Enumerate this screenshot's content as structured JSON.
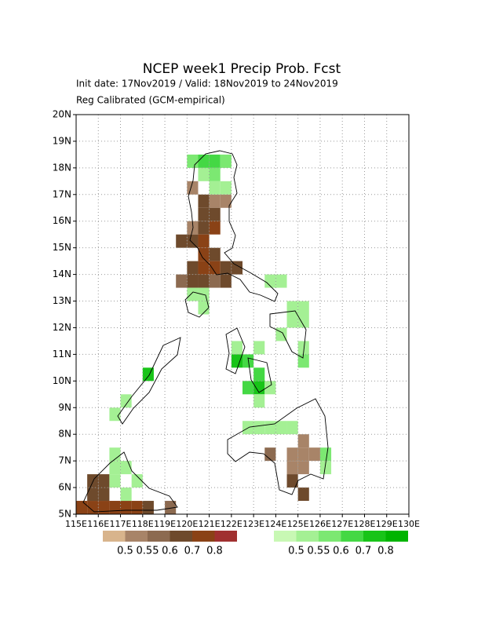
{
  "chart_data": {
    "type": "gridmap",
    "title": "NCEP week1 Precip Prob. Fcst",
    "subtitle": "Init date: 17Nov2019 / Valid: 18Nov2019 to 24Nov2019",
    "note": "Reg Calibrated (GCM-empirical)",
    "xlim": [
      115,
      130
    ],
    "ylim": [
      5,
      20
    ],
    "xticks": [
      {
        "value": 115,
        "label": "115E"
      },
      {
        "value": 116,
        "label": "116E"
      },
      {
        "value": 117,
        "label": "117E"
      },
      {
        "value": 118,
        "label": "118E"
      },
      {
        "value": 119,
        "label": "119E"
      },
      {
        "value": 120,
        "label": "120E"
      },
      {
        "value": 121,
        "label": "121E"
      },
      {
        "value": 122,
        "label": "122E"
      },
      {
        "value": 123,
        "label": "123E"
      },
      {
        "value": 124,
        "label": "124E"
      },
      {
        "value": 125,
        "label": "125E"
      },
      {
        "value": 126,
        "label": "126E"
      },
      {
        "value": 127,
        "label": "127E"
      },
      {
        "value": 128,
        "label": "128E"
      },
      {
        "value": 129,
        "label": "129E"
      },
      {
        "value": 130,
        "label": "130E"
      }
    ],
    "yticks": [
      {
        "value": 5,
        "label": "5N"
      },
      {
        "value": 6,
        "label": "6N"
      },
      {
        "value": 7,
        "label": "7N"
      },
      {
        "value": 8,
        "label": "8N"
      },
      {
        "value": 9,
        "label": "9N"
      },
      {
        "value": 10,
        "label": "10N"
      },
      {
        "value": 11,
        "label": "11N"
      },
      {
        "value": 12,
        "label": "12N"
      },
      {
        "value": 13,
        "label": "13N"
      },
      {
        "value": 14,
        "label": "14N"
      },
      {
        "value": 15,
        "label": "15N"
      },
      {
        "value": 16,
        "label": "16N"
      },
      {
        "value": 17,
        "label": "17N"
      },
      {
        "value": 18,
        "label": "18N"
      },
      {
        "value": 19,
        "label": "19N"
      },
      {
        "value": 20,
        "label": "20N"
      }
    ],
    "grid": true,
    "cell_size": 0.5,
    "series": [
      {
        "levels": [
          0.5,
          0.55,
          0.6,
          0.7,
          0.8
        ],
        "colors": [
          "#d8b48c",
          "#a88468",
          "#8c6a50",
          "#6e4a2c",
          "#8a4216",
          "#a03030"
        ],
        "lon": [
          120.0,
          121.0,
          121.5,
          120.5,
          120.5,
          121.0,
          120.0,
          120.5,
          121.0,
          119.5,
          120.0,
          120.5,
          120.5,
          121.0,
          120.0,
          120.5,
          121.0,
          121.5,
          122.0,
          119.5,
          120.0,
          120.5,
          121.0,
          121.5,
          125.0,
          123.5,
          124.5,
          125.0,
          125.5,
          124.5,
          125.0,
          124.5,
          125.0,
          115.0,
          115.5,
          116.0,
          116.5,
          117.0,
          117.5,
          115.5,
          116.0,
          115.5,
          116.0,
          118.0,
          119.0
        ],
        "lat": [
          17.0,
          16.5,
          16.5,
          16.5,
          16.0,
          16.0,
          15.5,
          15.5,
          15.5,
          15.0,
          15.0,
          15.0,
          14.5,
          14.5,
          14.0,
          14.0,
          14.0,
          14.0,
          14.0,
          13.5,
          13.5,
          13.5,
          13.5,
          13.5,
          7.5,
          7.0,
          7.0,
          7.0,
          7.0,
          6.5,
          6.5,
          6.0,
          5.5,
          5.0,
          5.0,
          5.0,
          5.0,
          5.0,
          5.0,
          5.5,
          5.5,
          6.0,
          6.0,
          5.0,
          5.0
        ],
        "values": [
          0.5,
          0.5,
          0.5,
          0.6,
          0.6,
          0.6,
          0.5,
          0.6,
          0.7,
          0.6,
          0.6,
          0.7,
          0.7,
          0.6,
          0.6,
          0.7,
          0.7,
          0.6,
          0.6,
          0.55,
          0.6,
          0.6,
          0.55,
          0.6,
          0.5,
          0.55,
          0.5,
          0.5,
          0.5,
          0.5,
          0.5,
          0.6,
          0.6,
          0.7,
          0.7,
          0.7,
          0.7,
          0.7,
          0.7,
          0.6,
          0.6,
          0.6,
          0.6,
          0.6,
          0.55
        ]
      },
      {
        "levels": [
          0.5,
          0.55,
          0.6,
          0.7,
          0.8
        ],
        "colors": [
          "#c8f8b4",
          "#a4f094",
          "#7ce872",
          "#44d844",
          "#18c418",
          "#00b400"
        ],
        "lon": [
          120.0,
          120.5,
          121.0,
          121.5,
          120.5,
          121.0,
          121.0,
          121.5,
          123.5,
          124.0,
          120.0,
          120.5,
          120.5,
          124.5,
          125.0,
          124.5,
          125.0,
          124.0,
          122.0,
          123.0,
          125.0,
          122.0,
          122.5,
          125.0,
          123.0,
          122.5,
          123.0,
          123.5,
          123.0,
          118.0,
          117.0,
          116.5,
          122.5,
          123.0,
          123.5,
          124.0,
          124.5,
          126.0,
          126.0,
          116.5,
          117.0,
          117.5,
          116.5,
          117.0,
          116.5
        ],
        "lat": [
          18.0,
          18.0,
          18.0,
          18.0,
          17.5,
          17.5,
          17.0,
          17.0,
          13.5,
          13.5,
          13.0,
          13.0,
          12.5,
          12.5,
          12.5,
          12.0,
          12.0,
          11.5,
          11.0,
          11.0,
          11.0,
          10.5,
          10.5,
          10.5,
          10.0,
          9.5,
          9.5,
          9.5,
          9.0,
          10.0,
          9.0,
          8.5,
          8.0,
          8.0,
          8.0,
          8.0,
          8.0,
          7.0,
          6.5,
          6.5,
          6.5,
          6.0,
          6.0,
          5.5,
          7.0
        ],
        "values": [
          0.55,
          0.6,
          0.6,
          0.55,
          0.5,
          0.55,
          0.5,
          0.5,
          0.5,
          0.5,
          0.5,
          0.5,
          0.5,
          0.5,
          0.5,
          0.5,
          0.5,
          0.5,
          0.5,
          0.5,
          0.5,
          0.7,
          0.6,
          0.55,
          0.6,
          0.6,
          0.7,
          0.5,
          0.5,
          0.7,
          0.5,
          0.5,
          0.5,
          0.5,
          0.5,
          0.5,
          0.5,
          0.55,
          0.5,
          0.5,
          0.5,
          0.5,
          0.5,
          0.5,
          0.5
        ]
      }
    ]
  }
}
